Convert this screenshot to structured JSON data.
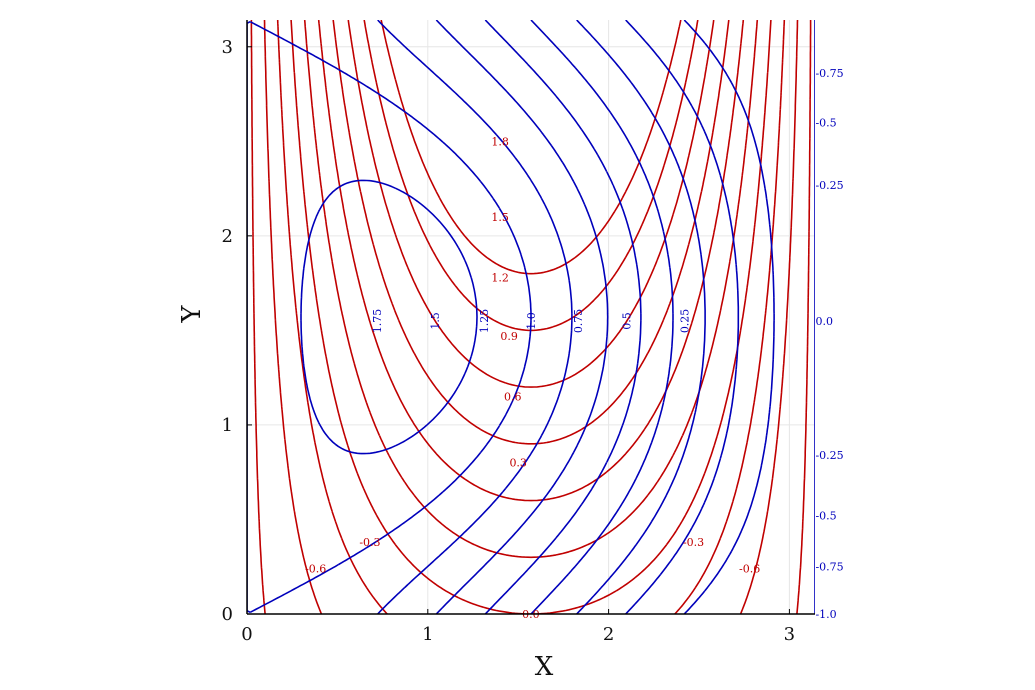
{
  "chart_data": {
    "type": "contour",
    "title": "",
    "xlabel": "X",
    "ylabel": "Y",
    "xlim": [
      0,
      3.1416
    ],
    "ylim": [
      0,
      3.1416
    ],
    "xticks": [
      "0",
      "1",
      "2",
      "3"
    ],
    "yticks": [
      "0",
      "1",
      "2",
      "3"
    ],
    "grid": true,
    "aspect": "equal",
    "series": [
      {
        "function": "sin(x)*sin(y) + cos(x)*cos(y) ... red field rendered as cos(x)*... (solid)",
        "color": "#c00000",
        "style": "solid",
        "levels": [
          -0.9,
          -0.6,
          -0.3,
          0.0,
          0.3,
          0.6,
          0.9,
          1.2,
          1.5,
          1.8
        ],
        "labels": [
          {
            "text": "1.8",
            "x": 1.4,
            "y": 2.5
          },
          {
            "text": "1.5",
            "x": 1.4,
            "y": 2.1
          },
          {
            "text": "1.2",
            "x": 1.4,
            "y": 1.78
          },
          {
            "text": "0.9",
            "x": 1.45,
            "y": 1.47
          },
          {
            "text": "0.6",
            "x": 1.47,
            "y": 1.15
          },
          {
            "text": "0.3",
            "x": 1.5,
            "y": 0.8
          },
          {
            "text": "0.0",
            "x": 1.57,
            "y": 0.0
          },
          {
            "text": "-0.3",
            "x": 0.68,
            "y": 0.38
          },
          {
            "text": "-0.6",
            "x": 0.38,
            "y": 0.24
          },
          {
            "text": "-0.3",
            "x": 2.47,
            "y": 0.38
          },
          {
            "text": "-0.6",
            "x": 2.78,
            "y": 0.24
          }
        ]
      },
      {
        "function": "blue dashed field",
        "color": "#0000bb",
        "style": "dashed",
        "levels": [
          -1.0,
          -0.75,
          -0.5,
          -0.25,
          0.0,
          0.25,
          0.5,
          0.75,
          1.0,
          1.25,
          1.5,
          1.75
        ],
        "labels": [
          {
            "text": "1.75",
            "x": 0.72,
            "y": 1.55
          },
          {
            "text": "1.5",
            "x": 1.04,
            "y": 1.55
          },
          {
            "text": "1.25",
            "x": 1.31,
            "y": 1.55
          },
          {
            "text": "1.0",
            "x": 1.57,
            "y": 1.55
          },
          {
            "text": "0.75",
            "x": 1.83,
            "y": 1.55
          },
          {
            "text": "0.5",
            "x": 2.1,
            "y": 1.55
          },
          {
            "text": "0.25",
            "x": 2.42,
            "y": 1.55
          },
          {
            "text": "0.0",
            "x": 3.1,
            "y": 1.55
          },
          {
            "text": "-0.75",
            "x": 3.1,
            "y": 2.86
          },
          {
            "text": "-0.5",
            "x": 3.1,
            "y": 2.6
          },
          {
            "text": "-0.25",
            "x": 3.1,
            "y": 2.27
          },
          {
            "text": "-0.25",
            "x": 3.1,
            "y": 0.84
          },
          {
            "text": "-0.5",
            "x": 3.1,
            "y": 0.52
          },
          {
            "text": "-0.75",
            "x": 3.1,
            "y": 0.25
          },
          {
            "text": "-1.0",
            "x": 3.1,
            "y": 0.0
          }
        ]
      }
    ]
  }
}
